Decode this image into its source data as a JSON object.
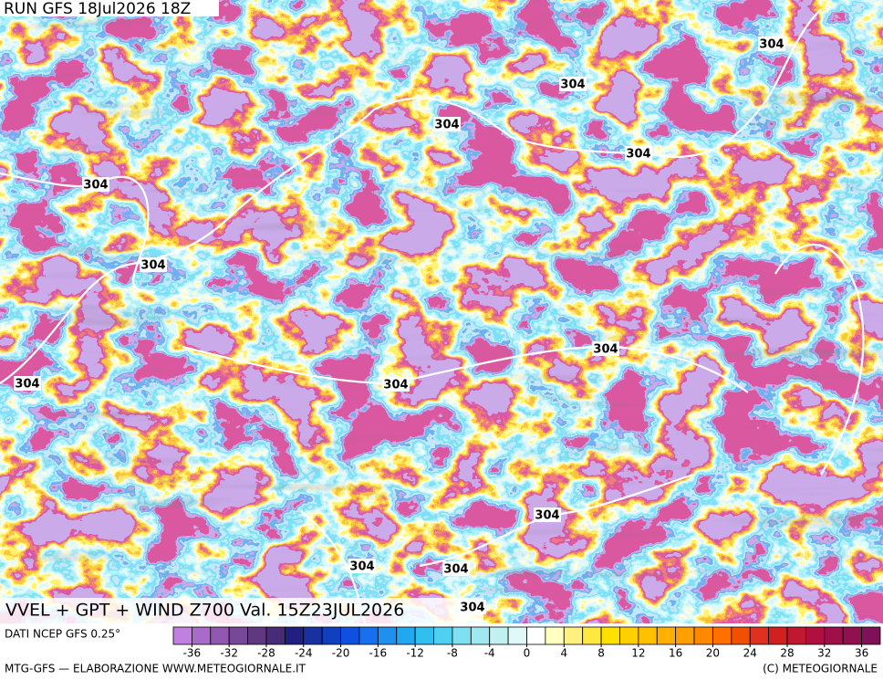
{
  "run_label": "RUN GFS 18Jul2026 18Z",
  "map_title": "VVEL + GPT + WIND Z700 Val. 15Z23JUL2026",
  "contour_labels": [
    "304",
    "304",
    "304",
    "304",
    "304",
    "304",
    "304",
    "304",
    "304",
    "304",
    "304",
    "304",
    "304"
  ],
  "source_label": "DATI NCEP GFS 0.25°",
  "footer_left": "MTG-GFS — ELABORAZIONE WWW.METEOGIORNALE.IT",
  "footer_right": "(C) METEOGIORNALE",
  "colorbar": {
    "min": -38,
    "max": 38,
    "colors": [
      "#c080e0",
      "#a86cc8",
      "#9058b0",
      "#784898",
      "#603880",
      "#482c78",
      "#202080",
      "#1830a0",
      "#1040c0",
      "#1050e0",
      "#1870f0",
      "#2090f0",
      "#20a8f0",
      "#30c0f0",
      "#50d0f0",
      "#80e0f0",
      "#a0e8f0",
      "#c0f0f0",
      "#e0f8f8",
      "#ffffff",
      "#ffffc0",
      "#fff080",
      "#ffe840",
      "#ffe000",
      "#ffd000",
      "#ffc000",
      "#ffb000",
      "#ffa000",
      "#ff8800",
      "#ff7000",
      "#f05000",
      "#e03020",
      "#d02020",
      "#c01830",
      "#b01040",
      "#a01048",
      "#901050",
      "#801058"
    ],
    "ticks": [
      -36,
      -32,
      -28,
      -24,
      -20,
      -16,
      -12,
      -8,
      -4,
      0,
      4,
      8,
      12,
      16,
      20,
      24,
      28,
      32,
      36
    ]
  }
}
